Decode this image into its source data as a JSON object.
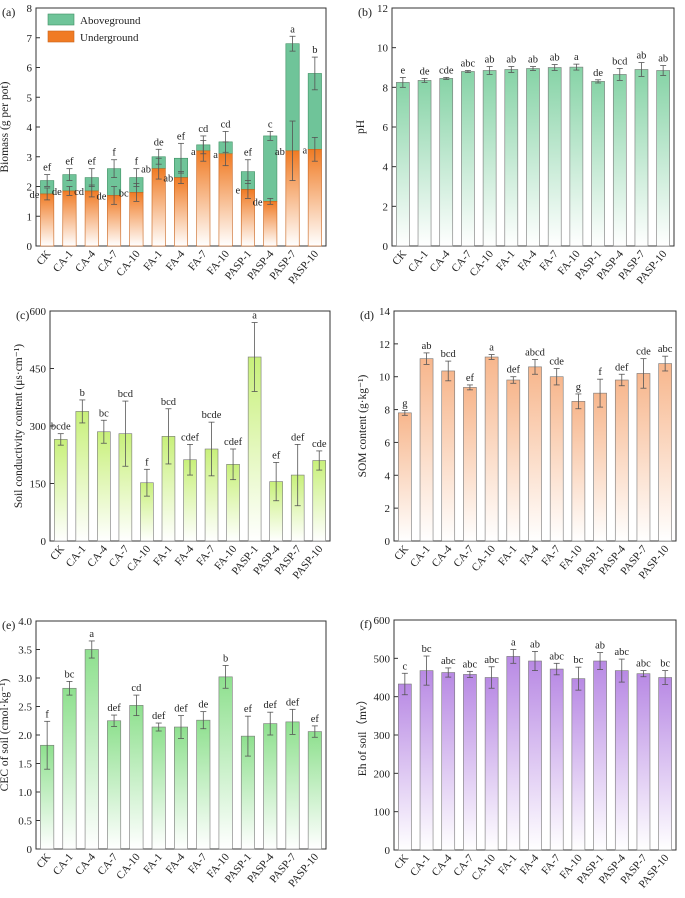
{
  "categories": [
    "CK",
    "CA-1",
    "CA-4",
    "CA-7",
    "CA-10",
    "FA-1",
    "FA-4",
    "FA-7",
    "FA-10",
    "PASP-1",
    "PASP-4",
    "PASP-7",
    "PASP-10"
  ],
  "colors": {
    "green_top": "#6cc596",
    "green_bottom": "#ffffff",
    "stack_green": "#6fc499",
    "orange_top": "#f07b24",
    "orange_bottom": "#ffffff",
    "ph_top": "#86d3a6",
    "ec_top": "#c8f07a",
    "som_top": "#f7b68c",
    "cec_top": "#8ee08e",
    "eh_top": "#b889e4",
    "axis": "#333333"
  },
  "chart_data": [
    {
      "id": "a",
      "type": "bar",
      "stacked": true,
      "panel_label": "(a)",
      "title": "",
      "ylabel": "Biomass (g per pot)",
      "xlabel": "",
      "ylim": [
        0,
        8
      ],
      "yticks": [
        0,
        1,
        2,
        3,
        4,
        5,
        6,
        7,
        8
      ],
      "legend": {
        "position": "top-left",
        "entries": [
          "Aboveground",
          "Underground"
        ]
      },
      "series": [
        {
          "name": "Underground",
          "values": [
            1.75,
            1.85,
            1.85,
            1.7,
            1.8,
            2.6,
            2.3,
            3.2,
            3.1,
            1.9,
            1.5,
            3.2,
            3.25
          ],
          "errors": [
            0.2,
            0.15,
            0.2,
            0.3,
            0.3,
            0.35,
            0.2,
            0.35,
            0.4,
            0.3,
            0.1,
            1.0,
            0.4
          ],
          "labels": [
            "de",
            "de",
            "cd",
            "de",
            "bc",
            "ab",
            "ab",
            "a",
            "a",
            "e",
            "de",
            "ab",
            "a"
          ]
        },
        {
          "name": "Aboveground",
          "totals": [
            2.2,
            2.4,
            2.3,
            2.6,
            2.3,
            3.0,
            2.95,
            3.4,
            3.5,
            2.5,
            3.7,
            6.8,
            5.8
          ],
          "errors": [
            0.2,
            0.2,
            0.3,
            0.3,
            0.3,
            0.25,
            0.5,
            0.3,
            0.35,
            0.4,
            0.15,
            0.25,
            0.55
          ],
          "labels": [
            "ef",
            "ef",
            "ef",
            "f",
            "f",
            "de",
            "ef",
            "cd",
            "cd",
            "ef",
            "c",
            "a",
            "b"
          ]
        }
      ]
    },
    {
      "id": "b",
      "type": "bar",
      "panel_label": "(b)",
      "title": "",
      "ylabel": "pH",
      "xlabel": "",
      "ylim": [
        0,
        12
      ],
      "yticks": [
        0,
        2,
        4,
        6,
        8,
        10,
        12
      ],
      "values": [
        8.25,
        8.35,
        8.45,
        8.8,
        8.85,
        8.9,
        8.95,
        9.0,
        9.02,
        8.3,
        8.65,
        8.9,
        8.85
      ],
      "errors": [
        0.25,
        0.1,
        0.05,
        0.05,
        0.2,
        0.15,
        0.1,
        0.15,
        0.15,
        0.08,
        0.3,
        0.35,
        0.25
      ],
      "labels": [
        "e",
        "de",
        "cde",
        "abc",
        "ab",
        "ab",
        "ab",
        "ab",
        "a",
        "de",
        "bcd",
        "ab",
        "ab"
      ]
    },
    {
      "id": "c",
      "type": "bar",
      "panel_label": "(c)",
      "title": "",
      "ylabel": "Soil conductivity content (μs·cm⁻¹)",
      "xlabel": "",
      "ylim": [
        0,
        600
      ],
      "yticks": [
        0,
        150,
        300,
        450,
        600
      ],
      "values": [
        265,
        338,
        285,
        280,
        152,
        273,
        212,
        240,
        200,
        480,
        155,
        172,
        210
      ],
      "errors": [
        15,
        30,
        30,
        85,
        35,
        72,
        40,
        70,
        40,
        90,
        50,
        80,
        25
      ],
      "labels": [
        "bcde",
        "b",
        "bc",
        "bcd",
        "f",
        "bcd",
        "cdef",
        "bcde",
        "cdef",
        "a",
        "ef",
        "def",
        "cde"
      ]
    },
    {
      "id": "d",
      "type": "bar",
      "panel_label": "(d)",
      "title": "",
      "ylabel": "SOM content (g·kg⁻¹)",
      "xlabel": "",
      "ylim": [
        0,
        14
      ],
      "yticks": [
        0,
        2,
        4,
        6,
        8,
        10,
        12,
        14
      ],
      "values": [
        7.8,
        11.1,
        10.35,
        9.35,
        11.2,
        9.8,
        10.6,
        10.0,
        8.5,
        9.0,
        9.8,
        10.2,
        10.8
      ],
      "errors": [
        0.15,
        0.35,
        0.6,
        0.15,
        0.15,
        0.2,
        0.45,
        0.5,
        0.45,
        0.85,
        0.35,
        0.9,
        0.45
      ],
      "labels": [
        "g",
        "ab",
        "bcd",
        "ef",
        "a",
        "def",
        "abcd",
        "cde",
        "g",
        "f",
        "def",
        "cde",
        "abc"
      ]
    },
    {
      "id": "e",
      "type": "bar",
      "panel_label": "(e)",
      "title": "",
      "ylabel": "CEC of soil (cmol·kg⁻¹)",
      "xlabel": "",
      "ylim": [
        0,
        4.0
      ],
      "yticks": [
        0,
        0.5,
        1.0,
        1.5,
        2.0,
        2.5,
        3.0,
        3.5,
        4.0
      ],
      "ytick_labels": [
        "0",
        "0.5",
        "1.0",
        "1.5",
        "2.0",
        "2.5",
        "3.0",
        "3.5",
        "4.0"
      ],
      "values": [
        1.82,
        2.82,
        3.5,
        2.25,
        2.52,
        2.14,
        2.14,
        2.26,
        3.02,
        1.98,
        2.2,
        2.23,
        2.06
      ],
      "errors": [
        0.42,
        0.12,
        0.15,
        0.1,
        0.18,
        0.07,
        0.2,
        0.15,
        0.2,
        0.35,
        0.2,
        0.22,
        0.1
      ],
      "labels": [
        "f",
        "bc",
        "a",
        "def",
        "cd",
        "def",
        "def",
        "de",
        "b",
        "ef",
        "def",
        "def",
        "ef"
      ]
    },
    {
      "id": "f",
      "type": "bar",
      "panel_label": "(f)",
      "title": "",
      "ylabel": "Eh of soil（mv）",
      "xlabel": "",
      "ylim": [
        0,
        600
      ],
      "yticks": [
        0,
        100,
        200,
        300,
        400,
        500,
        600
      ],
      "values": [
        433,
        468,
        463,
        458,
        450,
        505,
        493,
        472,
        447,
        493,
        468,
        460,
        450
      ],
      "errors": [
        28,
        38,
        12,
        8,
        28,
        18,
        25,
        15,
        30,
        22,
        30,
        8,
        18
      ],
      "labels": [
        "c",
        "bc",
        "abc",
        "abc",
        "abc",
        "a",
        "ab",
        "abc",
        "bc",
        "ab",
        "abc",
        "abc",
        "bc"
      ]
    }
  ]
}
